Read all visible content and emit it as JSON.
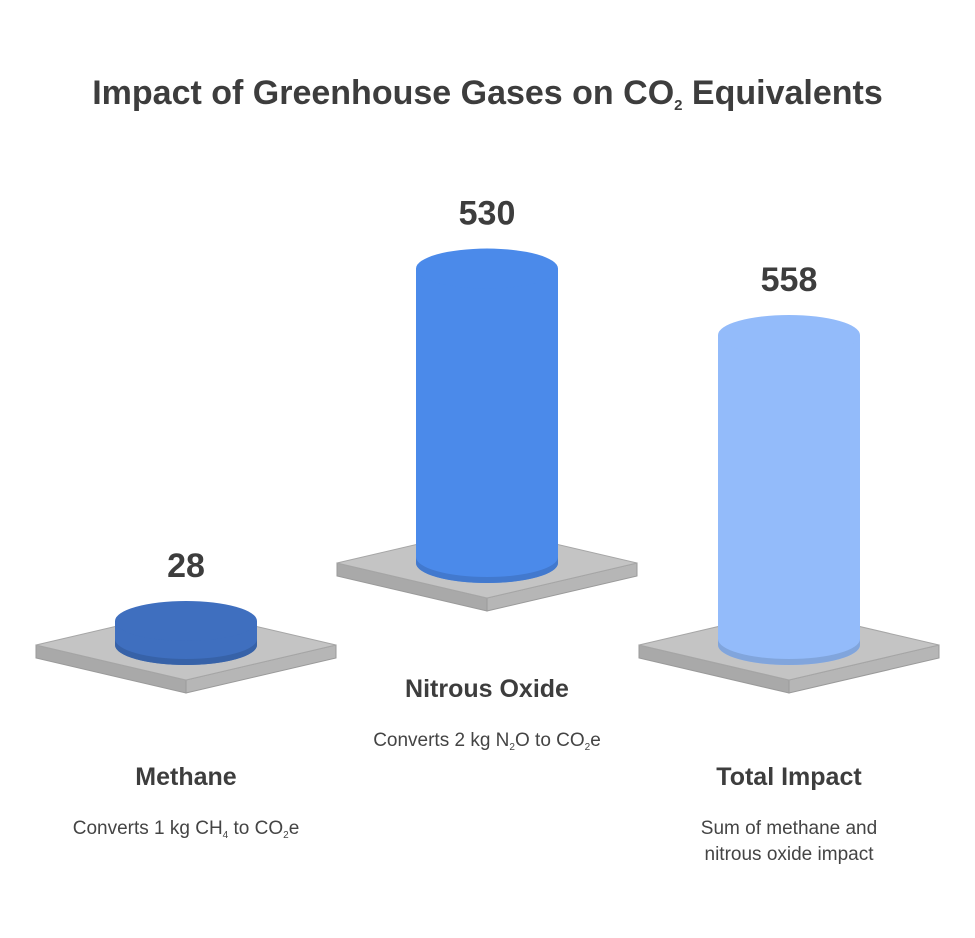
{
  "chart_data": {
    "type": "bar",
    "title": "Impact of Greenhouse Gases on CO2 Equivalents",
    "title_parts": [
      {
        "text": "Impact of Greenhouse Gases on CO"
      },
      {
        "text": "2",
        "sub": true
      },
      {
        "text": " Equivalents"
      }
    ],
    "categories": [
      "Methane",
      "Nitrous Oxide",
      "Total Impact"
    ],
    "values": [
      28,
      530,
      558
    ],
    "value_labels": [
      "28",
      "530",
      "558"
    ],
    "descriptions": [
      [
        {
          "text": "Converts 1 kg CH"
        },
        {
          "text": "4",
          "sub": true
        },
        {
          "text": " to CO"
        },
        {
          "text": "2",
          "sub": true
        },
        {
          "text": "e"
        }
      ],
      [
        {
          "text": "Converts 2 kg N"
        },
        {
          "text": "2",
          "sub": true
        },
        {
          "text": "O to CO"
        },
        {
          "text": "2",
          "sub": true
        },
        {
          "text": "e"
        }
      ],
      [
        {
          "text": "Sum of methane and nitrous oxide impact"
        }
      ]
    ],
    "colors": [
      "#3f6fbf",
      "#4b8aea",
      "#93bbfa"
    ],
    "platform_color": "#c4c4c4",
    "xlabel": "",
    "ylabel": "",
    "grid": false,
    "legend": "none"
  }
}
